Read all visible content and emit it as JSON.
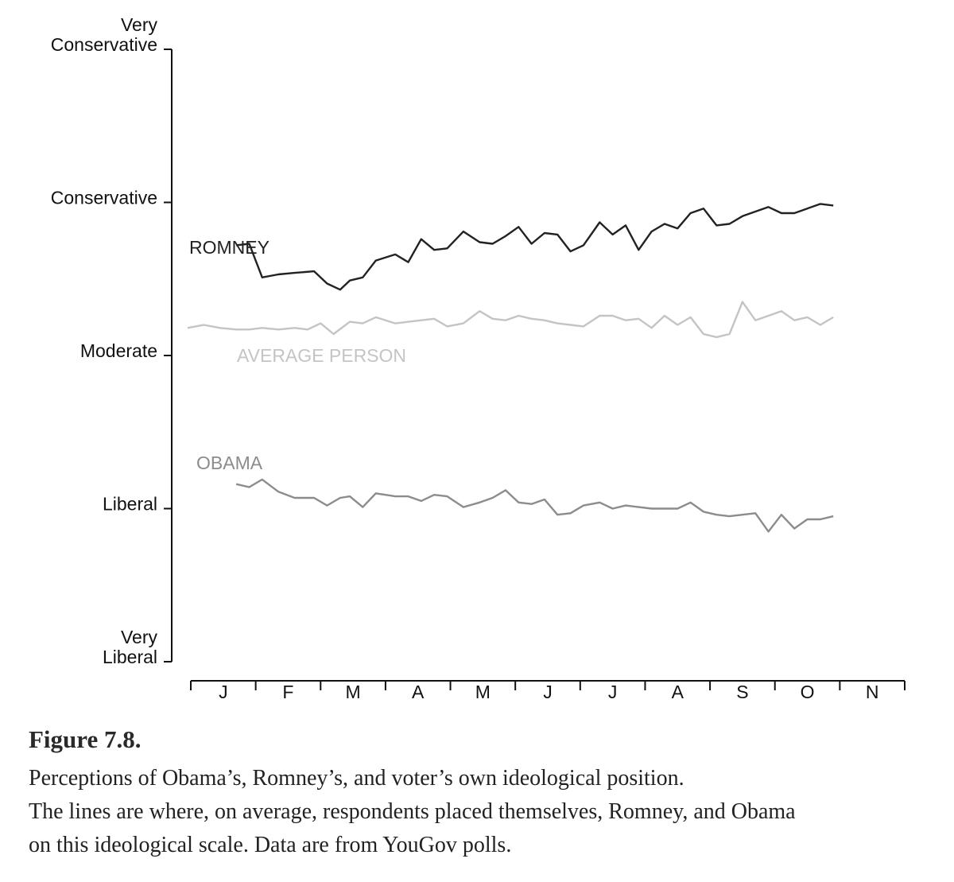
{
  "chart_data": {
    "type": "line",
    "title": "",
    "xlabel": "",
    "ylabel": "",
    "y_tick_labels": [
      {
        "value": 0,
        "lines": [
          "Very",
          "Liberal"
        ]
      },
      {
        "value": 1,
        "lines": [
          "Liberal"
        ]
      },
      {
        "value": 2,
        "lines": [
          "Moderate"
        ]
      },
      {
        "value": 3,
        "lines": [
          "Conservative"
        ]
      },
      {
        "value": 4,
        "lines": [
          "Very",
          "Conservative"
        ]
      }
    ],
    "ylim": [
      0,
      4
    ],
    "months": [
      "J",
      "F",
      "M",
      "A",
      "M",
      "J",
      "J",
      "A",
      "S",
      "O",
      "N"
    ],
    "x_range": [
      0,
      11
    ],
    "series": [
      {
        "name": "ROMNEY",
        "color": "#222222",
        "x": [
          0.7,
          0.9,
          1.1,
          1.35,
          1.6,
          1.9,
          2.1,
          2.3,
          2.45,
          2.65,
          2.85,
          3.15,
          3.35,
          3.55,
          3.75,
          3.95,
          4.2,
          4.45,
          4.65,
          4.85,
          5.05,
          5.25,
          5.45,
          5.65,
          5.85,
          6.05,
          6.3,
          6.5,
          6.7,
          6.9,
          7.1,
          7.3,
          7.5,
          7.7,
          7.9,
          8.1,
          8.3,
          8.5,
          8.7,
          8.9,
          9.1,
          9.3,
          9.5,
          9.7,
          9.9
        ],
        "values": [
          2.72,
          2.73,
          2.51,
          2.53,
          2.54,
          2.55,
          2.47,
          2.43,
          2.49,
          2.51,
          2.62,
          2.66,
          2.61,
          2.76,
          2.69,
          2.7,
          2.81,
          2.74,
          2.73,
          2.78,
          2.84,
          2.73,
          2.8,
          2.79,
          2.68,
          2.72,
          2.87,
          2.79,
          2.85,
          2.69,
          2.81,
          2.86,
          2.83,
          2.93,
          2.96,
          2.85,
          2.86,
          2.91,
          2.94,
          2.97,
          2.93,
          2.93,
          2.96,
          2.99,
          2.98
        ]
      },
      {
        "name": "AVERAGE PERSON",
        "color": "#c4c4c4",
        "x": [
          -0.05,
          0.2,
          0.45,
          0.7,
          0.9,
          1.1,
          1.35,
          1.6,
          1.8,
          2.0,
          2.2,
          2.45,
          2.65,
          2.85,
          3.15,
          3.35,
          3.55,
          3.75,
          3.95,
          4.2,
          4.45,
          4.65,
          4.85,
          5.05,
          5.25,
          5.45,
          5.65,
          5.85,
          6.05,
          6.3,
          6.5,
          6.7,
          6.9,
          7.1,
          7.3,
          7.5,
          7.7,
          7.9,
          8.1,
          8.3,
          8.5,
          8.7,
          8.9,
          9.1,
          9.3,
          9.5,
          9.7,
          9.9
        ],
        "values": [
          2.18,
          2.2,
          2.18,
          2.17,
          2.17,
          2.18,
          2.17,
          2.18,
          2.17,
          2.21,
          2.14,
          2.22,
          2.21,
          2.25,
          2.21,
          2.22,
          2.23,
          2.24,
          2.19,
          2.21,
          2.29,
          2.24,
          2.23,
          2.26,
          2.24,
          2.23,
          2.21,
          2.2,
          2.19,
          2.26,
          2.26,
          2.23,
          2.24,
          2.18,
          2.26,
          2.2,
          2.25,
          2.14,
          2.12,
          2.14,
          2.35,
          2.23,
          2.26,
          2.29,
          2.23,
          2.25,
          2.2,
          2.25
        ]
      },
      {
        "name": "OBAMA",
        "color": "#8c8c8c",
        "x": [
          0.7,
          0.9,
          1.1,
          1.35,
          1.6,
          1.9,
          2.1,
          2.3,
          2.45,
          2.65,
          2.85,
          3.15,
          3.35,
          3.55,
          3.75,
          3.95,
          4.2,
          4.45,
          4.65,
          4.85,
          5.05,
          5.25,
          5.45,
          5.65,
          5.85,
          6.05,
          6.3,
          6.5,
          6.7,
          6.9,
          7.1,
          7.3,
          7.5,
          7.7,
          7.9,
          8.1,
          8.3,
          8.5,
          8.7,
          8.9,
          9.1,
          9.3,
          9.5,
          9.7,
          9.9
        ],
        "values": [
          1.16,
          1.14,
          1.19,
          1.11,
          1.07,
          1.07,
          1.02,
          1.07,
          1.08,
          1.01,
          1.1,
          1.08,
          1.08,
          1.05,
          1.09,
          1.08,
          1.01,
          1.04,
          1.07,
          1.12,
          1.04,
          1.03,
          1.06,
          0.96,
          0.97,
          1.02,
          1.04,
          1.0,
          1.02,
          1.01,
          1.0,
          1.0,
          1.0,
          1.04,
          0.98,
          0.96,
          0.95,
          0.96,
          0.97,
          0.85,
          0.96,
          0.87,
          0.93,
          0.93,
          0.95
        ]
      }
    ]
  },
  "caption": {
    "figure_label": "Figure 7.8.",
    "line_1": "Perceptions of Obama’s, Romney’s, and voter’s own ideological position.",
    "line_2": "The lines are where, on average, respondents placed themselves, Romney, and Obama",
    "line_3": "on this ideological scale. Data are from YouGov polls."
  }
}
